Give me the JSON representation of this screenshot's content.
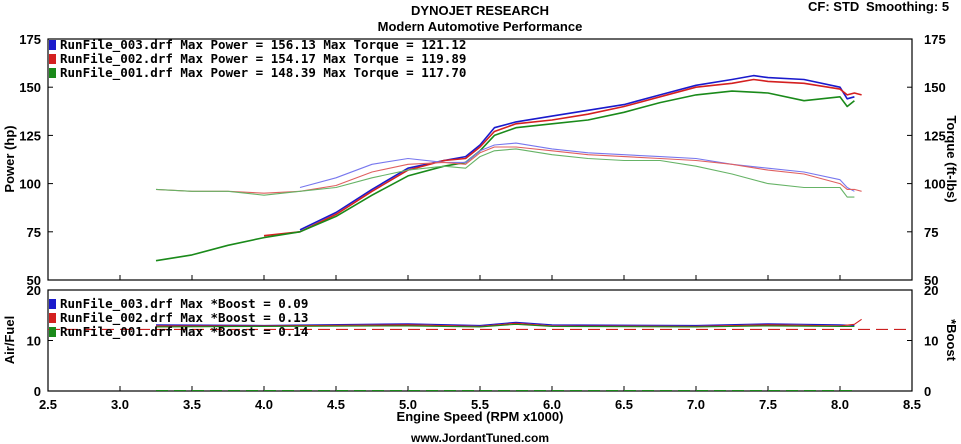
{
  "header": {
    "title": "DYNOJET RESEARCH",
    "subtitle": "Modern Automotive Performance",
    "cf_label": "CF: STD",
    "smoothing_label": "Smoothing: 5",
    "footer": "www.JordantTuned.com"
  },
  "chart_data": [
    {
      "type": "line",
      "panel": "power-torque",
      "xlabel": "Engine Speed (RPM x1000)",
      "ylabel": "Power (hp)",
      "ylabel_right": "Torque (ft-lbs)",
      "xlim": [
        2.5,
        8.5
      ],
      "ylim": [
        50,
        175
      ],
      "x_ticks": [
        "2.5",
        "3.0",
        "3.5",
        "4.0",
        "4.5",
        "5.0",
        "5.5",
        "6.0",
        "6.5",
        "7.0",
        "7.5",
        "8.0",
        "8.5"
      ],
      "y_ticks": [
        "50",
        "75",
        "100",
        "125",
        "150",
        "175"
      ],
      "grid": false,
      "legend": [
        "RunFile_003.drf Max Power = 156.13   Max Torque = 121.12",
        "RunFile_002.drf Max Power = 154.17   Max Torque = 119.89",
        "RunFile_001.drf Max Power = 148.39   Max Torque = 117.70"
      ],
      "series": [
        {
          "name": "RunFile_003.drf",
          "measure": "power",
          "color": "#1a1acc",
          "x": [
            3.25,
            3.5,
            3.75,
            4.0,
            4.25,
            4.5,
            4.75,
            5.0,
            5.25,
            5.4,
            5.5,
            5.6,
            5.75,
            6.0,
            6.25,
            6.5,
            6.75,
            7.0,
            7.25,
            7.4,
            7.5,
            7.75,
            8.0,
            8.05,
            8.1
          ],
          "y": [
            null,
            null,
            null,
            null,
            76,
            85,
            97,
            108,
            112,
            114,
            120,
            129,
            132,
            135,
            138,
            141,
            146,
            151,
            154,
            156,
            155,
            154,
            150,
            144,
            145
          ]
        },
        {
          "name": "RunFile_002.drf",
          "measure": "power",
          "color": "#d42020",
          "x": [
            4.0,
            4.25,
            4.5,
            4.75,
            5.0,
            5.25,
            5.4,
            5.5,
            5.6,
            5.75,
            6.0,
            6.25,
            6.5,
            6.75,
            7.0,
            7.25,
            7.4,
            7.5,
            7.75,
            8.0,
            8.05,
            8.1,
            8.15
          ],
          "y": [
            73,
            75,
            84,
            96,
            107,
            112,
            113,
            119,
            127,
            131,
            133,
            136,
            140,
            145,
            150,
            152,
            154,
            153,
            152,
            149,
            146,
            147,
            146
          ]
        },
        {
          "name": "RunFile_001.drf",
          "measure": "power",
          "color": "#1a8a1a",
          "x": [
            3.25,
            3.5,
            3.75,
            4.0,
            4.25,
            4.5,
            4.75,
            5.0,
            5.25,
            5.4,
            5.5,
            5.6,
            5.75,
            6.0,
            6.25,
            6.5,
            6.75,
            7.0,
            7.25,
            7.5,
            7.75,
            8.0,
            8.05,
            8.1
          ],
          "y": [
            60,
            63,
            68,
            72,
            75,
            83,
            94,
            104,
            109,
            111,
            117,
            125,
            129,
            131,
            133,
            137,
            142,
            146,
            148,
            147,
            143,
            145,
            140,
            143
          ]
        },
        {
          "name": "RunFile_003.drf",
          "measure": "torque",
          "color": "#7777ee",
          "x": [
            4.25,
            4.5,
            4.75,
            5.0,
            5.25,
            5.4,
            5.5,
            5.6,
            5.75,
            6.0,
            6.25,
            6.5,
            6.75,
            7.0,
            7.25,
            7.5,
            7.75,
            8.0,
            8.05,
            8.1
          ],
          "y": [
            98,
            103,
            110,
            113,
            111,
            111,
            117,
            120,
            121,
            118,
            116,
            115,
            114,
            113,
            110,
            108,
            106,
            102,
            98,
            96
          ]
        },
        {
          "name": "RunFile_002.drf",
          "measure": "torque",
          "color": "#e06060",
          "x": [
            3.25,
            3.5,
            3.75,
            4.0,
            4.25,
            4.5,
            4.75,
            5.0,
            5.25,
            5.4,
            5.5,
            5.6,
            5.75,
            6.0,
            6.25,
            6.5,
            6.75,
            7.0,
            7.25,
            7.5,
            7.75,
            8.0,
            8.05,
            8.1,
            8.15
          ],
          "y": [
            97,
            96,
            96,
            95,
            96,
            99,
            106,
            110,
            111,
            110,
            116,
            119,
            119,
            117,
            115,
            114,
            113,
            112,
            110,
            107,
            105,
            100,
            97,
            97,
            96
          ]
        },
        {
          "name": "RunFile_001.drf",
          "measure": "torque",
          "color": "#66b366",
          "x": [
            3.25,
            3.5,
            3.75,
            4.0,
            4.25,
            4.5,
            4.75,
            5.0,
            5.25,
            5.4,
            5.5,
            5.6,
            5.75,
            6.0,
            6.25,
            6.5,
            6.75,
            7.0,
            7.25,
            7.5,
            7.75,
            8.0,
            8.05,
            8.1
          ],
          "y": [
            97,
            96,
            96,
            94,
            96,
            98,
            103,
            107,
            109,
            108,
            114,
            117,
            118,
            115,
            113,
            112,
            112,
            109,
            105,
            100,
            98,
            98,
            93,
            93
          ]
        }
      ]
    },
    {
      "type": "line",
      "panel": "airfuel-boost",
      "ylabel": "Air/Fuel",
      "ylabel_right": "*Boost",
      "xlim": [
        2.5,
        8.5
      ],
      "ylim": [
        0,
        20
      ],
      "y_ticks": [
        "0",
        "10",
        "20"
      ],
      "grid": false,
      "legend": [
        "RunFile_003.drf Max *Boost = 0.09",
        "RunFile_002.drf Max *Boost = 0.13",
        "RunFile_001.drf Max *Boost = 0.14"
      ],
      "series": [
        {
          "name": "RunFile_003.drf",
          "measure": "air-fuel",
          "color": "#1a1acc",
          "x": [
            3.25,
            4.0,
            5.0,
            5.5,
            5.75,
            6.0,
            7.0,
            7.5,
            8.0,
            8.1
          ],
          "y": [
            13.1,
            13.0,
            13.3,
            13.0,
            13.6,
            13.1,
            13.0,
            13.3,
            13.1,
            13.0
          ]
        },
        {
          "name": "RunFile_002.drf",
          "measure": "air-fuel",
          "color": "#d42020",
          "x": [
            3.25,
            4.0,
            5.0,
            5.5,
            5.75,
            6.0,
            7.0,
            7.5,
            8.0,
            8.1,
            8.15
          ],
          "y": [
            12.9,
            12.9,
            13.1,
            12.8,
            13.4,
            12.9,
            12.8,
            13.1,
            12.9,
            13.2,
            14.2
          ]
        },
        {
          "name": "RunFile_001.drf",
          "measure": "air-fuel",
          "color": "#1a8a1a",
          "x": [
            3.25,
            4.0,
            5.0,
            5.5,
            5.75,
            6.0,
            7.0,
            7.5,
            8.0,
            8.1
          ],
          "y": [
            12.7,
            12.8,
            12.9,
            12.7,
            13.2,
            12.8,
            12.7,
            12.9,
            12.8,
            12.8
          ]
        },
        {
          "name": "*Boost",
          "measure": "boost",
          "color": "#cc2020",
          "dashed": true,
          "x": [
            2.5,
            8.5
          ],
          "y": [
            12.2,
            12.2
          ]
        },
        {
          "name": "*Boost baseline",
          "measure": "boost",
          "color": "#1a8a1a",
          "dashed": true,
          "x": [
            3.25,
            8.1
          ],
          "y": [
            0.1,
            0.1
          ]
        }
      ]
    }
  ]
}
